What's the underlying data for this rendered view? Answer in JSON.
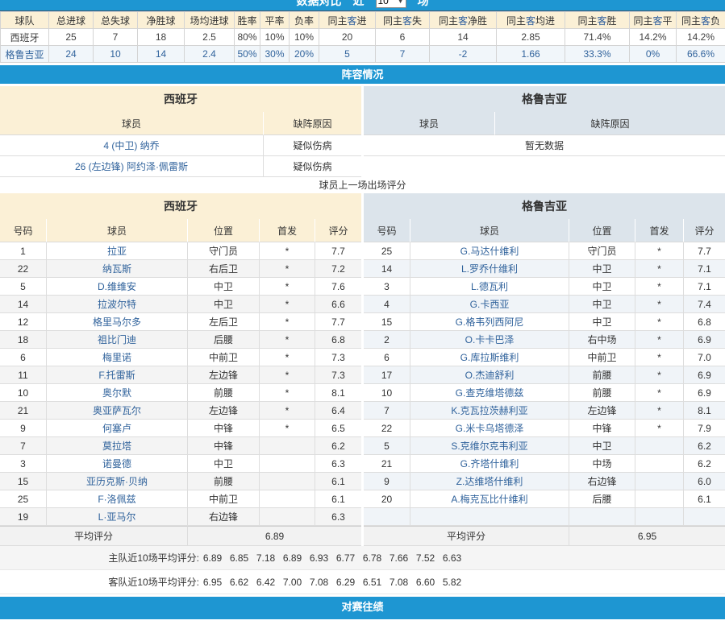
{
  "colors": {
    "accent": "#1E96D2",
    "link": "#31639C",
    "cream": "#FBF0D6",
    "bluegray": "#DCE4EB"
  },
  "top_banner": {
    "title": "数据对比",
    "near_label": "近",
    "select_value": "10",
    "matches_label": "场"
  },
  "stats_table": {
    "headers": [
      "球队",
      "总进球",
      "总失球",
      "净胜球",
      "场均进球",
      "胜率",
      "平率",
      "负率",
      "同主客进",
      "同主客失",
      "同主客净胜",
      "同主客均进",
      "同主客胜",
      "同主客平",
      "同主客负"
    ],
    "rows": [
      {
        "team": "西班牙",
        "values": [
          "25",
          "7",
          "18",
          "2.5",
          "80%",
          "10%",
          "10%",
          "20",
          "6",
          "14",
          "2.85",
          "71.4%",
          "14.2%",
          "14.2%"
        ]
      },
      {
        "team": "格鲁吉亚",
        "values": [
          "24",
          "10",
          "14",
          "2.4",
          "50%",
          "30%",
          "20%",
          "5",
          "7",
          "-2",
          "1.66",
          "33.3%",
          "0%",
          "66.6%"
        ]
      }
    ]
  },
  "lineup_banner": "阵容情况",
  "lineup": {
    "home": {
      "team": "西班牙",
      "headers": [
        "球员",
        "缺阵原因"
      ],
      "rows": [
        {
          "player": "4 (中卫) 纳乔",
          "reason": "疑似伤病"
        },
        {
          "player": "26 (左边锋) 阿约泽·佩雷斯",
          "reason": "疑似伤病"
        }
      ]
    },
    "away": {
      "team": "格鲁吉亚",
      "headers": [
        "球员",
        "缺阵原因"
      ],
      "empty_text": "暂无数据"
    }
  },
  "ratings_title": "球员上一场出场评分",
  "ratings": {
    "headers": [
      "号码",
      "球员",
      "位置",
      "首发",
      "评分"
    ],
    "home": {
      "team": "西班牙",
      "avg_label": "平均评分",
      "avg": "6.89",
      "players": [
        {
          "num": "1",
          "name": "拉亚",
          "pos": "守门员",
          "starter": true,
          "rating": "7.7"
        },
        {
          "num": "22",
          "name": "纳瓦斯",
          "pos": "右后卫",
          "starter": true,
          "rating": "7.2"
        },
        {
          "num": "5",
          "name": "D.维维安",
          "pos": "中卫",
          "starter": true,
          "rating": "7.6"
        },
        {
          "num": "14",
          "name": "拉波尔特",
          "pos": "中卫",
          "starter": true,
          "rating": "6.6"
        },
        {
          "num": "12",
          "name": "格里马尔多",
          "pos": "左后卫",
          "starter": true,
          "rating": "7.7"
        },
        {
          "num": "18",
          "name": "祖比门迪",
          "pos": "后腰",
          "starter": true,
          "rating": "6.8"
        },
        {
          "num": "6",
          "name": "梅里诺",
          "pos": "中前卫",
          "starter": true,
          "rating": "7.3"
        },
        {
          "num": "11",
          "name": "F.托雷斯",
          "pos": "左边锋",
          "starter": true,
          "rating": "7.3"
        },
        {
          "num": "10",
          "name": "奥尔默",
          "pos": "前腰",
          "starter": true,
          "rating": "8.1"
        },
        {
          "num": "21",
          "name": "奥亚萨瓦尔",
          "pos": "左边锋",
          "starter": true,
          "rating": "6.4"
        },
        {
          "num": "9",
          "name": "何塞卢",
          "pos": "中锋",
          "starter": true,
          "rating": "6.5"
        },
        {
          "num": "7",
          "name": "莫拉塔",
          "pos": "中锋",
          "starter": false,
          "rating": "6.2"
        },
        {
          "num": "3",
          "name": "诺曼德",
          "pos": "中卫",
          "starter": false,
          "rating": "6.3"
        },
        {
          "num": "15",
          "name": "亚历克斯·贝纳",
          "pos": "前腰",
          "starter": false,
          "rating": "6.1"
        },
        {
          "num": "25",
          "name": "F·洛佩兹",
          "pos": "中前卫",
          "starter": false,
          "rating": "6.1"
        },
        {
          "num": "19",
          "name": "L·亚马尔",
          "pos": "右边锋",
          "starter": false,
          "rating": "6.3"
        }
      ]
    },
    "away": {
      "team": "格鲁吉亚",
      "avg_label": "平均评分",
      "avg": "6.95",
      "players": [
        {
          "num": "25",
          "name": "G.马达什维利",
          "pos": "守门员",
          "starter": true,
          "rating": "7.7"
        },
        {
          "num": "14",
          "name": "L.罗乔什维利",
          "pos": "中卫",
          "starter": true,
          "rating": "7.1"
        },
        {
          "num": "3",
          "name": "L.德瓦利",
          "pos": "中卫",
          "starter": true,
          "rating": "7.1"
        },
        {
          "num": "4",
          "name": "G.卡西亚",
          "pos": "中卫",
          "starter": true,
          "rating": "7.4"
        },
        {
          "num": "15",
          "name": "G.格韦列西阿尼",
          "pos": "中卫",
          "starter": true,
          "rating": "6.8"
        },
        {
          "num": "2",
          "name": "O.卡卡巴泽",
          "pos": "右中场",
          "starter": true,
          "rating": "6.9"
        },
        {
          "num": "6",
          "name": "G.库拉斯维利",
          "pos": "中前卫",
          "starter": true,
          "rating": "7.0"
        },
        {
          "num": "17",
          "name": "O.杰迪舒利",
          "pos": "前腰",
          "starter": true,
          "rating": "6.9"
        },
        {
          "num": "10",
          "name": "G.查克维塔德兹",
          "pos": "前腰",
          "starter": true,
          "rating": "6.9"
        },
        {
          "num": "7",
          "name": "K.克瓦拉茨赫利亚",
          "pos": "左边锋",
          "starter": true,
          "rating": "8.1"
        },
        {
          "num": "22",
          "name": "G.米卡乌塔德泽",
          "pos": "中锋",
          "starter": true,
          "rating": "7.9"
        },
        {
          "num": "5",
          "name": "S.克维尔克韦利亚",
          "pos": "中卫",
          "starter": false,
          "rating": "6.2"
        },
        {
          "num": "21",
          "name": "G.齐塔什维利",
          "pos": "中场",
          "starter": false,
          "rating": "6.2"
        },
        {
          "num": "9",
          "name": "Z.达维塔什维利",
          "pos": "右边锋",
          "starter": false,
          "rating": "6.0"
        },
        {
          "num": "20",
          "name": "A.梅克瓦比什维利",
          "pos": "后腰",
          "starter": false,
          "rating": "6.1"
        },
        {
          "num": "",
          "name": "",
          "pos": "",
          "starter": false,
          "rating": ""
        }
      ]
    }
  },
  "footer": {
    "home_label": "主队近10场平均评分:",
    "home_values": [
      "6.89",
      "6.85",
      "7.18",
      "6.89",
      "6.93",
      "6.77",
      "6.78",
      "7.66",
      "7.52",
      "6.63"
    ],
    "away_label": "客队近10场平均评分:",
    "away_values": [
      "6.95",
      "6.62",
      "6.42",
      "7.00",
      "7.08",
      "6.29",
      "6.51",
      "7.08",
      "6.60",
      "5.82"
    ]
  },
  "bottom_banner": "对赛往绩"
}
